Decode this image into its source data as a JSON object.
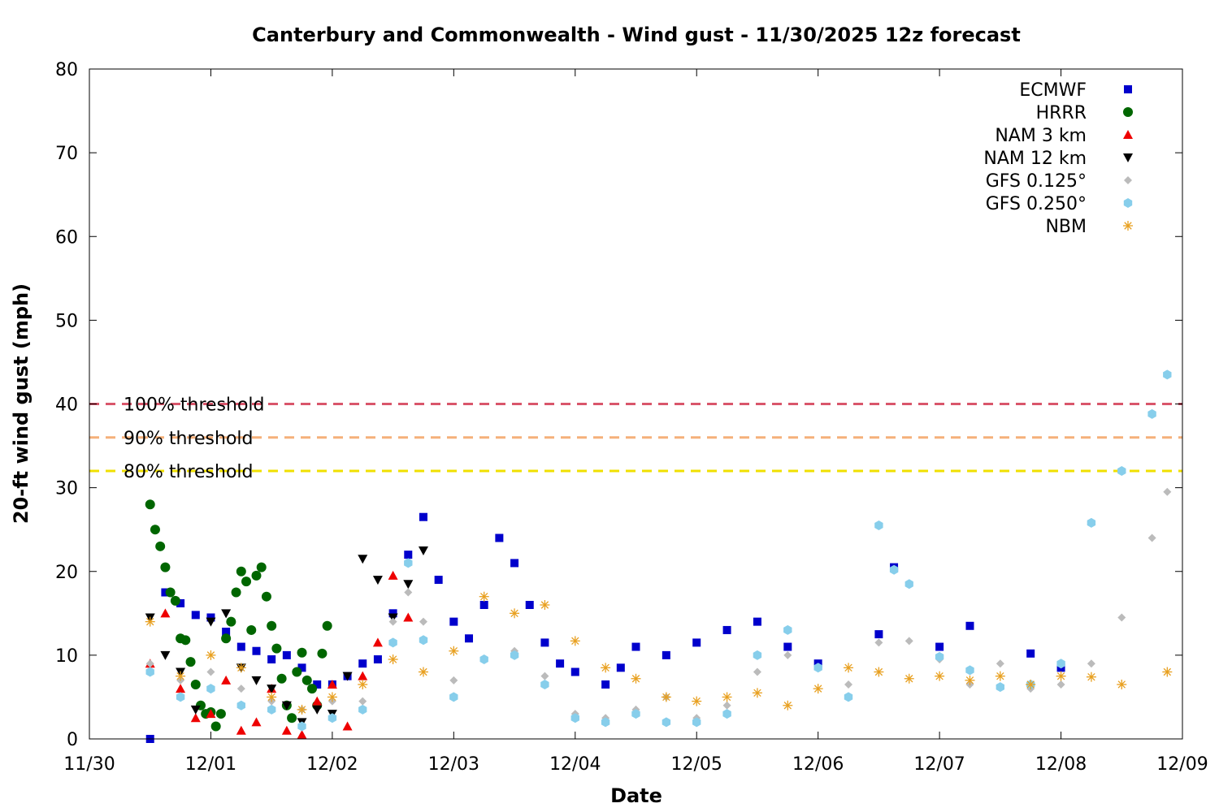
{
  "chart_data": {
    "type": "scatter",
    "title": "Canterbury and Commonwealth - Wind gust - 11/30/2025 12z forecast",
    "xlabel": "Date",
    "ylabel": "20-ft wind gust (mph)",
    "xlim": [
      "11/30 00z",
      "12/09 00z"
    ],
    "ylim": [
      0,
      80
    ],
    "x_ticks": [
      "11/30",
      "12/01",
      "12/02",
      "12/03",
      "12/04",
      "12/05",
      "12/06",
      "12/07",
      "12/08",
      "12/09"
    ],
    "y_ticks": [
      "0",
      "10",
      "20",
      "30",
      "40",
      "50",
      "60",
      "70",
      "80"
    ],
    "legend_position": "top-right",
    "thresholds": [
      {
        "label": "100% threshold",
        "value": 40,
        "color": "#d9566b"
      },
      {
        "label": "90% threshold",
        "value": 36,
        "color": "#f5b07a"
      },
      {
        "label": "80% threshold",
        "value": 32,
        "color": "#f0e000"
      }
    ],
    "series": [
      {
        "name": "ECMWF",
        "color": "#0000cc",
        "marker": "square",
        "points": [
          [
            "11/30 12z",
            0
          ],
          [
            "11/30 15z",
            17.5
          ],
          [
            "11/30 18z",
            16.2
          ],
          [
            "11/30 21z",
            14.8
          ],
          [
            "12/01 00z",
            14.5
          ],
          [
            "12/01 03z",
            12.8
          ],
          [
            "12/01 06z",
            11.0
          ],
          [
            "12/01 09z",
            10.5
          ],
          [
            "12/01 12z",
            9.5
          ],
          [
            "12/01 15z",
            10.0
          ],
          [
            "12/01 18z",
            8.5
          ],
          [
            "12/01 21z",
            6.5
          ],
          [
            "12/02 00z",
            6.5
          ],
          [
            "12/02 03z",
            7.5
          ],
          [
            "12/02 06z",
            9.0
          ],
          [
            "12/02 09z",
            9.5
          ],
          [
            "12/02 12z",
            15.0
          ],
          [
            "12/02 15z",
            22.0
          ],
          [
            "12/02 18z",
            26.5
          ],
          [
            "12/02 21z",
            19.0
          ],
          [
            "12/03 00z",
            14.0
          ],
          [
            "12/03 03z",
            12.0
          ],
          [
            "12/03 06z",
            16.0
          ],
          [
            "12/03 09z",
            24.0
          ],
          [
            "12/03 12z",
            21.0
          ],
          [
            "12/03 15z",
            16.0
          ],
          [
            "12/03 18z",
            11.5
          ],
          [
            "12/03 21z",
            9.0
          ],
          [
            "12/04 00z",
            8.0
          ],
          [
            "12/04 06z",
            6.5
          ],
          [
            "12/04 09z",
            8.5
          ],
          [
            "12/04 12z",
            11.0
          ],
          [
            "12/04 18z",
            10.0
          ],
          [
            "12/05 00z",
            11.5
          ],
          [
            "12/05 06z",
            13.0
          ],
          [
            "12/05 12z",
            14.0
          ],
          [
            "12/05 18z",
            11.0
          ],
          [
            "12/06 00z",
            9.0
          ],
          [
            "12/06 12z",
            12.5
          ],
          [
            "12/06 15z",
            20.5
          ],
          [
            "12/07 00z",
            11.0
          ],
          [
            "12/07 06z",
            13.5
          ],
          [
            "12/07 18z",
            10.2
          ],
          [
            "12/08 00z",
            8.5
          ]
        ]
      },
      {
        "name": "HRRR",
        "color": "#006600",
        "marker": "circle",
        "points": [
          [
            "11/30 12z",
            28.0
          ],
          [
            "11/30 13z",
            25.0
          ],
          [
            "11/30 14z",
            23.0
          ],
          [
            "11/30 15z",
            20.5
          ],
          [
            "11/30 16z",
            17.5
          ],
          [
            "11/30 17z",
            16.5
          ],
          [
            "11/30 18z",
            12.0
          ],
          [
            "11/30 19z",
            11.8
          ],
          [
            "11/30 20z",
            9.2
          ],
          [
            "11/30 21z",
            6.5
          ],
          [
            "11/30 22z",
            4.0
          ],
          [
            "11/30 23z",
            3.0
          ],
          [
            "12/01 00z",
            3.2
          ],
          [
            "12/01 01z",
            1.5
          ],
          [
            "12/01 02z",
            3.0
          ],
          [
            "12/01 03z",
            12.0
          ],
          [
            "12/01 04z",
            14.0
          ],
          [
            "12/01 05z",
            17.5
          ],
          [
            "12/01 06z",
            20.0
          ],
          [
            "12/01 07z",
            18.8
          ],
          [
            "12/01 08z",
            13.0
          ],
          [
            "12/01 09z",
            19.5
          ],
          [
            "12/01 10z",
            20.5
          ],
          [
            "12/01 11z",
            17.0
          ],
          [
            "12/01 12z",
            13.5
          ],
          [
            "12/01 13z",
            10.8
          ],
          [
            "12/01 14z",
            7.2
          ],
          [
            "12/01 15z",
            4.0
          ],
          [
            "12/01 16z",
            2.5
          ],
          [
            "12/01 17z",
            8.0
          ],
          [
            "12/01 18z",
            10.3
          ],
          [
            "12/01 19z",
            7.0
          ],
          [
            "12/01 20z",
            6.0
          ],
          [
            "12/01 21z",
            4.0
          ],
          [
            "12/01 22z",
            10.2
          ],
          [
            "12/01 23z",
            13.5
          ]
        ]
      },
      {
        "name": "NAM 3 km",
        "color": "#ee0000",
        "marker": "triangle-up",
        "points": [
          [
            "11/30 12z",
            9.0
          ],
          [
            "11/30 15z",
            15.0
          ],
          [
            "11/30 18z",
            6.0
          ],
          [
            "11/30 21z",
            2.5
          ],
          [
            "12/01 00z",
            3.0
          ],
          [
            "12/01 03z",
            7.0
          ],
          [
            "12/01 06z",
            1.0
          ],
          [
            "12/01 09z",
            2.0
          ],
          [
            "12/01 12z",
            6.0
          ],
          [
            "12/01 15z",
            1.0
          ],
          [
            "12/01 18z",
            0.5
          ],
          [
            "12/01 21z",
            4.5
          ],
          [
            "12/02 00z",
            6.5
          ],
          [
            "12/02 03z",
            1.5
          ],
          [
            "12/02 06z",
            7.5
          ],
          [
            "12/02 09z",
            11.5
          ],
          [
            "12/02 12z",
            19.5
          ],
          [
            "12/02 15z",
            14.5
          ]
        ]
      },
      {
        "name": "NAM 12 km",
        "color": "#000000",
        "marker": "triangle-down",
        "points": [
          [
            "11/30 12z",
            14.5
          ],
          [
            "11/30 15z",
            10.0
          ],
          [
            "11/30 18z",
            8.0
          ],
          [
            "11/30 21z",
            3.5
          ],
          [
            "12/01 00z",
            14.0
          ],
          [
            "12/01 03z",
            15.0
          ],
          [
            "12/01 06z",
            8.5
          ],
          [
            "12/01 09z",
            7.0
          ],
          [
            "12/01 12z",
            6.0
          ],
          [
            "12/01 15z",
            4.0
          ],
          [
            "12/01 18z",
            2.0
          ],
          [
            "12/01 21z",
            3.5
          ],
          [
            "12/02 00z",
            3.0
          ],
          [
            "12/02 03z",
            7.5
          ],
          [
            "12/02 06z",
            21.5
          ],
          [
            "12/02 09z",
            19.0
          ],
          [
            "12/02 12z",
            14.5
          ],
          [
            "12/02 15z",
            18.5
          ],
          [
            "12/02 18z",
            22.5
          ]
        ]
      },
      {
        "name": "GFS 0.125°",
        "color": "#bbbbbb",
        "marker": "diamond",
        "points": [
          [
            "11/30 12z",
            9.0
          ],
          [
            "11/30 18z",
            7.0
          ],
          [
            "12/01 00z",
            8.0
          ],
          [
            "12/01 06z",
            6.0
          ],
          [
            "12/01 12z",
            4.5
          ],
          [
            "12/01 18z",
            3.5
          ],
          [
            "12/02 00z",
            4.5
          ],
          [
            "12/02 06z",
            4.5
          ],
          [
            "12/02 12z",
            14.0
          ],
          [
            "12/02 15z",
            17.5
          ],
          [
            "12/02 18z",
            14.0
          ],
          [
            "12/03 00z",
            7.0
          ],
          [
            "12/03 06z",
            9.5
          ],
          [
            "12/03 12z",
            10.5
          ],
          [
            "12/03 18z",
            7.5
          ],
          [
            "12/04 00z",
            3.0
          ],
          [
            "12/04 06z",
            2.5
          ],
          [
            "12/04 12z",
            3.5
          ],
          [
            "12/04 18z",
            5.0
          ],
          [
            "12/05 00z",
            2.5
          ],
          [
            "12/05 06z",
            4.0
          ],
          [
            "12/05 12z",
            8.0
          ],
          [
            "12/05 18z",
            10.0
          ],
          [
            "12/06 00z",
            8.5
          ],
          [
            "12/06 06z",
            6.5
          ],
          [
            "12/06 12z",
            11.5
          ],
          [
            "12/06 18z",
            11.7
          ],
          [
            "12/07 00z",
            9.5
          ],
          [
            "12/07 06z",
            6.5
          ],
          [
            "12/07 12z",
            9.0
          ],
          [
            "12/07 18z",
            6.0
          ],
          [
            "12/08 00z",
            6.5
          ],
          [
            "12/08 06z",
            9.0
          ],
          [
            "12/08 12z",
            14.5
          ],
          [
            "12/08 18z",
            24.0
          ],
          [
            "12/08 21z",
            29.5
          ]
        ]
      },
      {
        "name": "GFS 0.250°",
        "color": "#87ceeb",
        "marker": "hexagon",
        "points": [
          [
            "11/30 12z",
            8.0
          ],
          [
            "11/30 18z",
            5.0
          ],
          [
            "12/01 00z",
            6.0
          ],
          [
            "12/01 06z",
            4.0
          ],
          [
            "12/01 12z",
            3.5
          ],
          [
            "12/01 18z",
            1.5
          ],
          [
            "12/02 00z",
            2.5
          ],
          [
            "12/02 06z",
            3.5
          ],
          [
            "12/02 12z",
            11.5
          ],
          [
            "12/02 15z",
            21.0
          ],
          [
            "12/02 18z",
            11.8
          ],
          [
            "12/03 00z",
            5.0
          ],
          [
            "12/03 06z",
            9.5
          ],
          [
            "12/03 12z",
            10.0
          ],
          [
            "12/03 18z",
            6.5
          ],
          [
            "12/04 00z",
            2.5
          ],
          [
            "12/04 06z",
            2.0
          ],
          [
            "12/04 12z",
            3.0
          ],
          [
            "12/04 18z",
            2.0
          ],
          [
            "12/05 00z",
            2.0
          ],
          [
            "12/05 06z",
            3.0
          ],
          [
            "12/05 12z",
            10.0
          ],
          [
            "12/05 18z",
            13.0
          ],
          [
            "12/06 00z",
            8.5
          ],
          [
            "12/06 06z",
            5.0
          ],
          [
            "12/06 12z",
            25.5
          ],
          [
            "12/06 15z",
            20.2
          ],
          [
            "12/06 18z",
            18.5
          ],
          [
            "12/07 00z",
            9.8
          ],
          [
            "12/07 06z",
            8.2
          ],
          [
            "12/07 12z",
            6.2
          ],
          [
            "12/07 18z",
            6.5
          ],
          [
            "12/08 00z",
            9.0
          ],
          [
            "12/08 06z",
            25.8
          ],
          [
            "12/08 12z",
            32.0
          ],
          [
            "12/08 18z",
            38.8
          ],
          [
            "12/08 21z",
            43.5
          ]
        ]
      },
      {
        "name": "NBM",
        "color": "#e8a020",
        "marker": "star",
        "points": [
          [
            "11/30 12z",
            14.0
          ],
          [
            "11/30 18z",
            7.5
          ],
          [
            "12/01 00z",
            10.0
          ],
          [
            "12/01 06z",
            8.5
          ],
          [
            "12/01 12z",
            5.0
          ],
          [
            "12/01 18z",
            3.5
          ],
          [
            "12/02 00z",
            5.0
          ],
          [
            "12/02 06z",
            6.5
          ],
          [
            "12/02 12z",
            9.5
          ],
          [
            "12/02 18z",
            8.0
          ],
          [
            "12/03 00z",
            10.5
          ],
          [
            "12/03 06z",
            17.0
          ],
          [
            "12/03 12z",
            15.0
          ],
          [
            "12/03 18z",
            16.0
          ],
          [
            "12/04 00z",
            11.7
          ],
          [
            "12/04 06z",
            8.5
          ],
          [
            "12/04 12z",
            7.2
          ],
          [
            "12/04 18z",
            5.0
          ],
          [
            "12/05 00z",
            4.5
          ],
          [
            "12/05 06z",
            5.0
          ],
          [
            "12/05 12z",
            5.5
          ],
          [
            "12/05 18z",
            4.0
          ],
          [
            "12/06 00z",
            6.0
          ],
          [
            "12/06 06z",
            8.5
          ],
          [
            "12/06 12z",
            8.0
          ],
          [
            "12/06 18z",
            7.2
          ],
          [
            "12/07 00z",
            7.5
          ],
          [
            "12/07 06z",
            7.0
          ],
          [
            "12/07 12z",
            7.5
          ],
          [
            "12/07 18z",
            6.5
          ],
          [
            "12/08 00z",
            7.5
          ],
          [
            "12/08 06z",
            7.4
          ],
          [
            "12/08 12z",
            6.5
          ],
          [
            "12/08 21z",
            8.0
          ]
        ]
      }
    ]
  }
}
